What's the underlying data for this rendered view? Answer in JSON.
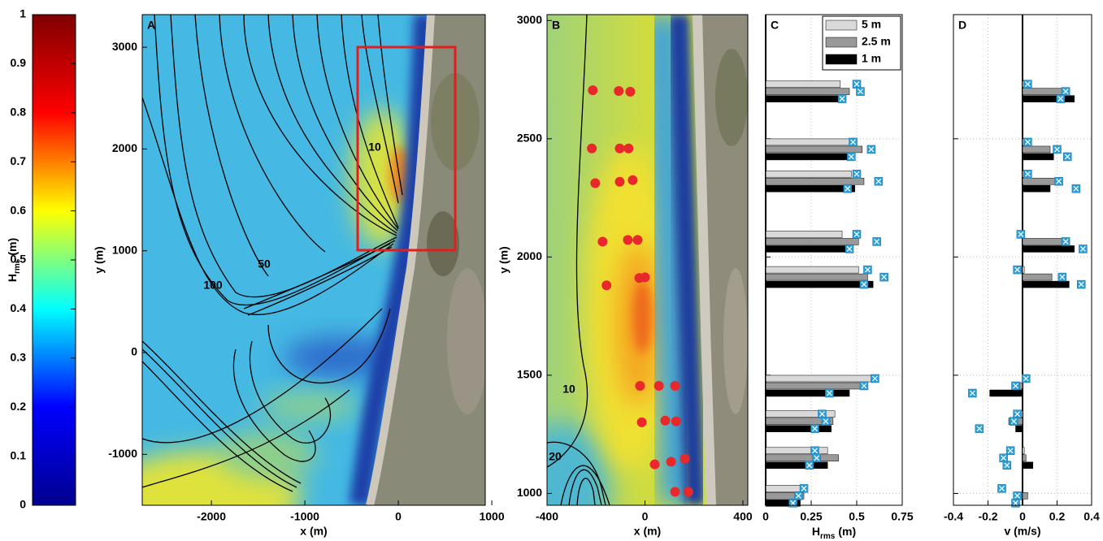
{
  "chart_data": [
    {
      "type": "colorbar",
      "label": {
        "main": "H",
        "sub": "rms",
        "unit": "(m)"
      },
      "ylim": [
        0,
        1
      ],
      "yticks": [
        0,
        0.1,
        0.2,
        0.3,
        0.4,
        0.5,
        0.6,
        0.7,
        0.8,
        0.9,
        1
      ],
      "colormap": "jet"
    },
    {
      "type": "map",
      "panel": "A",
      "xlabel": "x (m)",
      "ylabel": "y (m)",
      "xlim": [
        -2740,
        930
      ],
      "ylim": [
        -1500,
        3320
      ],
      "xticks": [
        -2000,
        -1000,
        0,
        1000
      ],
      "yticks": [
        -1000,
        0,
        1000,
        2000,
        3000
      ],
      "contour_labels": [
        "10",
        "50",
        "100"
      ]
    },
    {
      "type": "map",
      "panel": "B",
      "xlabel": "x (m)",
      "ylabel": "y (m)",
      "xlim": [
        -400,
        420
      ],
      "ylim": [
        950,
        3025
      ],
      "xticks": [
        -400,
        0,
        400
      ],
      "yticks": [
        1000,
        1500,
        2000,
        2500,
        3000
      ],
      "contour_labels": [
        "10",
        "20"
      ],
      "points": {
        "color": "#e8282b",
        "x": [
          -213,
          -107,
          -60,
          -217,
          -103,
          -67,
          -203,
          -103,
          -50,
          -173,
          -70,
          -30,
          -157,
          -23,
          0,
          -20,
          57,
          123,
          -13,
          83,
          127,
          40,
          107,
          163,
          123,
          177
        ],
        "y": [
          2705,
          2702,
          2699,
          2459,
          2459,
          2459,
          2312,
          2318,
          2325,
          2065,
          2072,
          2072,
          1880,
          1911,
          1914,
          1455,
          1455,
          1455,
          1301,
          1308,
          1305,
          1123,
          1134,
          1147,
          1007,
          1007
        ]
      }
    },
    {
      "type": "bar",
      "orientation": "horizontal",
      "panel": "C",
      "xlabel": {
        "main": "H",
        "sub": "rms",
        "unit": "(m)"
      },
      "xlim": [
        0,
        0.75
      ],
      "xticks": [
        0,
        0.25,
        0.5,
        0.75
      ],
      "ylim": [
        950,
        3025
      ],
      "ygrid": [
        1000,
        1500,
        2000,
        2500
      ],
      "grid": true,
      "legend": "upper right",
      "marker_color": "#2b9fd9",
      "y": [
        2700,
        2455,
        2320,
        2065,
        1915,
        1455,
        1305,
        1150,
        990
      ],
      "series": [
        {
          "name": "5 m",
          "color": "#d9d9d9",
          "values": [
            0.41,
            0.46,
            0.47,
            0.42,
            0.51,
            0.59,
            0.38,
            0.34,
            0.21
          ],
          "observed": [
            0.5,
            0.48,
            0.5,
            0.5,
            0.56,
            0.6,
            0.31,
            0.27,
            0.21
          ]
        },
        {
          "name": "2.5 m",
          "color": "#999999",
          "values": [
            0.46,
            0.53,
            0.54,
            0.51,
            0.56,
            0.56,
            0.37,
            0.4,
            0.21
          ],
          "observed": [
            0.52,
            0.58,
            0.62,
            0.61,
            0.65,
            0.54,
            0.33,
            0.28,
            0.18
          ]
        },
        {
          "name": "1 m",
          "color": "#000000",
          "values": [
            0.41,
            0.45,
            0.49,
            0.47,
            0.59,
            0.46,
            0.36,
            0.34,
            0.19
          ],
          "observed": [
            0.42,
            0.47,
            0.45,
            0.46,
            0.54,
            0.35,
            0.27,
            0.24,
            0.15
          ]
        }
      ]
    },
    {
      "type": "bar",
      "orientation": "horizontal",
      "panel": "D",
      "xlabel": "v (m/s)",
      "xlim": [
        -0.4,
        0.4
      ],
      "xticks": [
        -0.4,
        -0.2,
        0,
        0.2,
        0.4
      ],
      "ylim": [
        950,
        3025
      ],
      "ygrid": [
        1000,
        1500,
        2000,
        2500
      ],
      "grid": true,
      "marker_color": "#2b9fd9",
      "y": [
        2700,
        2455,
        2320,
        2065,
        1915,
        1455,
        1305,
        1150,
        990
      ],
      "series": [
        {
          "color": "#d9d9d9",
          "values": [
            0.04,
            0.04,
            0.05,
            0.01,
            0.01,
            0.0,
            -0.02,
            0.01,
            0.0
          ],
          "observed": [
            0.03,
            0.03,
            0.03,
            -0.01,
            -0.03,
            0.02,
            -0.03,
            -0.07,
            -0.12
          ]
        },
        {
          "color": "#999999",
          "values": [
            0.26,
            0.16,
            0.2,
            0.23,
            0.17,
            -0.03,
            -0.08,
            0.02,
            0.03
          ],
          "observed": [
            0.25,
            0.2,
            0.21,
            0.25,
            0.23,
            -0.04,
            -0.05,
            -0.11,
            -0.03
          ]
        },
        {
          "color": "#000000",
          "values": [
            0.3,
            0.18,
            0.16,
            0.3,
            0.27,
            -0.19,
            -0.04,
            0.06,
            0.0
          ],
          "observed": [
            0.22,
            0.26,
            0.31,
            0.35,
            0.34,
            -0.29,
            -0.25,
            -0.09,
            -0.04
          ]
        }
      ]
    }
  ]
}
